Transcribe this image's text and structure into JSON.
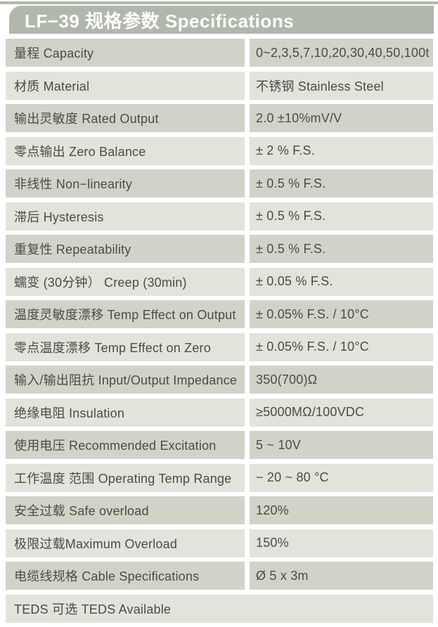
{
  "header": {
    "title": "LF−39 规格参数 Specifications"
  },
  "colors": {
    "accent": "#b2b7ac",
    "row_dark": "#d3d2c9",
    "row_light": "#e3e2db",
    "text": "#4c4b46",
    "title_text": "#ffffff"
  },
  "table": {
    "rows": [
      {
        "label": "量程 Capacity",
        "value": "0~2,3,5,7,10,20,30,40,50,100t"
      },
      {
        "label": "材质 Material",
        "value": "不锈钢 Stainless Steel"
      },
      {
        "label": "输出灵敏度 Rated Output",
        "value": "2.0 ±10%mV/V"
      },
      {
        "label": "零点输出  Zero Balance",
        "value": "±  2 % F.S."
      },
      {
        "label": "非线性 Non−linearity",
        "value": "±  0.5 % F.S."
      },
      {
        "label": "滞后 Hysteresis",
        "value": "±  0.5 % F.S."
      },
      {
        "label": "重复性 Repeatability",
        "value": "±  0.5 % F.S."
      },
      {
        "label": "蠕变 (30分钟） Creep (30min)",
        "value": "±  0.05 % F.S."
      },
      {
        "label": "温度灵敏度漂移 Temp Effect on Output",
        "value": "±  0.05% F.S. / 10°C"
      },
      {
        "label": "零点温度漂移 Temp Effect on Zero",
        "value": "±  0.05% F.S. / 10°C"
      },
      {
        "label": "输入/输出阻抗 Input/Output Impedance",
        "value": "350(700)Ω"
      },
      {
        "label": "绝缘电阻  Insulation",
        "value": "≥5000MΩ/100VDC"
      },
      {
        "label": "使用电压 Recommended Excitation",
        "value": "5 ~ 10V"
      },
      {
        "label": "工作温度 范围 Operating Temp  Range",
        "value": "− 20 ~ 80 °C"
      },
      {
        "label": "安全过载 Safe overload",
        "value": "120%"
      },
      {
        "label": "极限过载Maximum Overload",
        "value": "150%"
      },
      {
        "label": "电缆线规格 Cable Specifications",
        "value": "Ø  5 x 3m"
      },
      {
        "label": "TEDS 可选 TEDS Available",
        "value": "",
        "full_width": true
      }
    ]
  }
}
